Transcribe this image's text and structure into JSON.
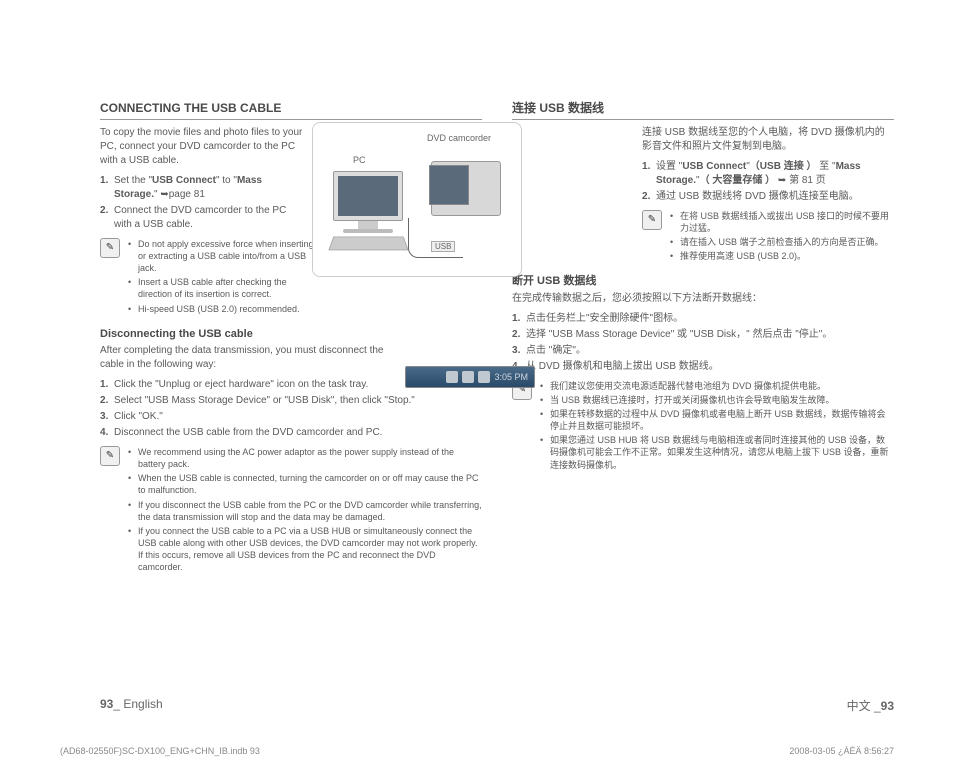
{
  "left": {
    "title": "CONNECTING THE USB CABLE",
    "intro": "To copy the movie files and photo files to your PC, connect your DVD camcorder to the PC with a USB cable.",
    "steps": [
      "Set the \"<b>USB Connect</b>\" to \"<b>Mass Storage.</b>\" <span class='arrow'></span>page 81",
      "Connect the DVD camcorder to the PC with a USB cable."
    ],
    "notes1": [
      "Do not apply excessive force when inserting or extracting a USB cable into/from a USB jack.",
      "Insert a USB cable after checking the direction of its insertion is correct.",
      "Hi-speed USB (USB 2.0) recommended."
    ],
    "sub_title": "Disconnecting the USB cable",
    "sub_intro": "After completing the data transmission, you must disconnect the cable in the following way:",
    "sub_steps": [
      "Click the \"Unplug or eject hardware\" icon on the task tray.",
      "Select \"USB Mass Storage Device\" or \"USB Disk\", then click \"Stop.\"",
      "Click \"OK.\"",
      "Disconnect the USB cable from the DVD camcorder and PC."
    ],
    "notes2": [
      "We recommend using the AC power adaptor as the power supply instead of the battery pack.",
      "When the USB cable is connected, turning the camcorder on or off may cause the PC to malfunction.",
      "If you disconnect the USB cable from the PC or the DVD camcorder while transferring, the data transmission will stop and the data may be damaged.",
      "If you connect the USB cable to a PC via a USB HUB or simultaneously connect the USB cable along with other USB devices, the DVD camcorder may not work properly. If this occurs, remove all USB devices from the PC and reconnect the DVD camcorder."
    ]
  },
  "right": {
    "title": "连接 USB 数据线",
    "intro": "连接 USB 数据线至您的个人电脑，将 DVD 摄像机内的影音文件和照片文件复制到电脑。",
    "steps": [
      "设置 \"<b>USB Connect</b>\"<b>（USB 连接 ）</b> 至 \"<b>Mass Storage.</b>\"<b>（ 大容量存储 ）</b> <span class='arrow'></span> 第 81 页",
      "通过 USB 数据线将 DVD 摄像机连接至电脑。"
    ],
    "notes1": [
      "在将 USB 数据线插入或拔出 USB 接口的时候不要用力过猛。",
      "请在插入 USB 端子之前检查插入的方向是否正确。",
      "推荐使用高速 USB  (USB 2.0)。"
    ],
    "sub_title": "断开 USB 数据线",
    "sub_intro": "在完成传输数据之后，您必须按照以下方法断开数据线：",
    "sub_steps": [
      "点击任务栏上\"安全删除硬件\"图标。",
      "选择 \"USB Mass Storage Device\" 或 \"USB Disk，\" 然后点击 \"停止\"。",
      "点击 \"确定\"。",
      "从 DVD 摄像机和电脑上拔出 USB 数据线。"
    ],
    "notes2": [
      "我们建议您使用交流电源适配器代替电池组为 DVD 摄像机提供电能。",
      "当 USB 数据线已连接时，打开或关闭摄像机也许会导致电脑发生故障。",
      "如果在转移数据的过程中从 DVD 摄像机或者电脑上断开 USB 数据线，数据传输将会停止并且数据可能损坏。",
      "如果您通过 USB HUB 将 USB 数据线与电脑相连或者同时连接其他的 USB 设备，数码摄像机可能会工作不正常。如果发生这种情况，请您从电脑上拔下 USB 设备，重新连接数码摄像机。"
    ]
  },
  "diagram": {
    "pc_label": "PC",
    "cam_label": "DVD camcorder",
    "usb_label": "USB"
  },
  "taskbar": {
    "time": "3:05 PM"
  },
  "footer": {
    "left_num": "93",
    "left_lang": "_ English",
    "right_lang": "中文 _",
    "right_num": "93"
  },
  "meta": {
    "left": "(AD68-02550F)SC-DX100_ENG+CHN_IB.indb   93",
    "right": "2008-03-05   ¿ÀÈÄ 8:56:27"
  },
  "colors": {
    "text": "#5a5a5a",
    "rule": "#999999",
    "bg": "#ffffff"
  }
}
